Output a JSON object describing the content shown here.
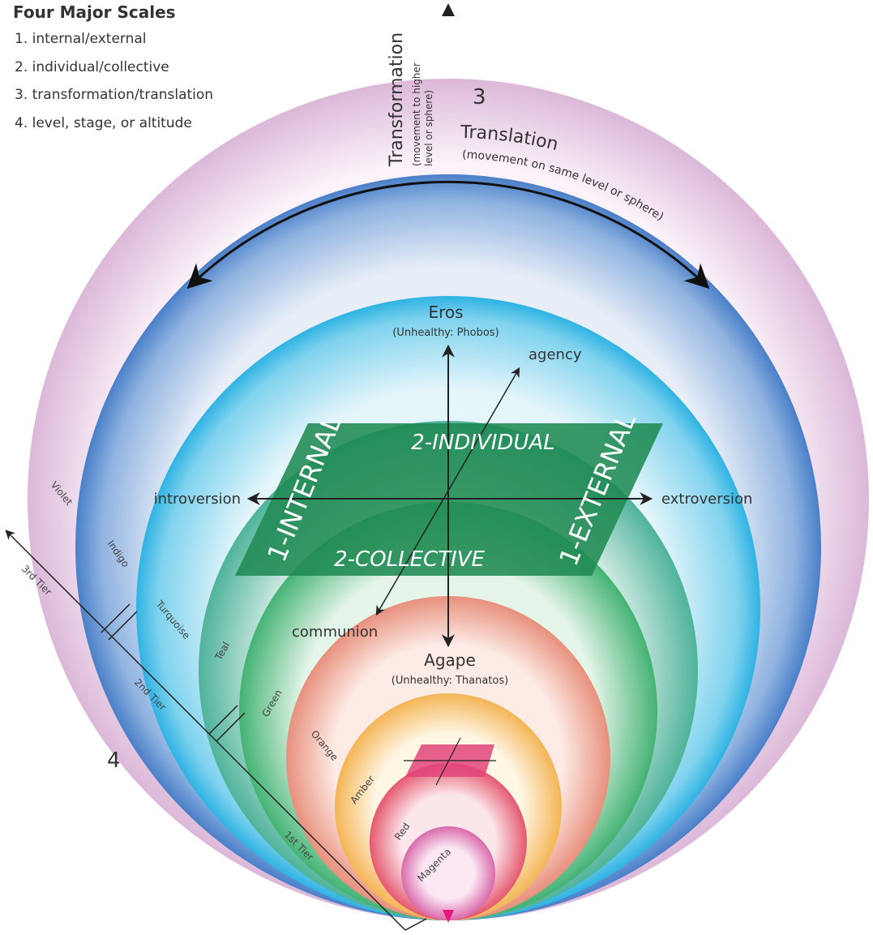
{
  "legend": {
    "title": "Four Major Scales",
    "items": [
      "1. internal/external",
      "2. individual/collective",
      "3. transformation/translation",
      "4. level, stage, or altitude"
    ]
  },
  "transformation": {
    "number": "3",
    "label": "Transformation",
    "note": [
      "(movement to higher",
      "level or sphere)"
    ]
  },
  "translation": {
    "label": "Translation",
    "note": "(movement on same level or sphere)"
  },
  "eros": {
    "label": "Eros",
    "note": "(Unhealthy: Phobos)"
  },
  "agape": {
    "label": "Agape",
    "note": "(Unhealthy: Thanatos)"
  },
  "quadrants": {
    "individual": "2-INDIVIDUAL",
    "collective": "2-COLLECTIVE",
    "internal": "1-INTERNAL",
    "external": "1-EXTERNAL"
  },
  "directions": {
    "introversion": "introversion",
    "extroversion": "extroversion",
    "agency": "agency",
    "communion": "communion"
  },
  "levels": [
    "Violet",
    "Indigo",
    "Turquoise",
    "Teal",
    "Green",
    "Orange",
    "Amber",
    "Red",
    "Magenta"
  ],
  "tiers": [
    "3rd Tier",
    "2nd Tier",
    "1st Tier"
  ],
  "level_scale": "4"
}
